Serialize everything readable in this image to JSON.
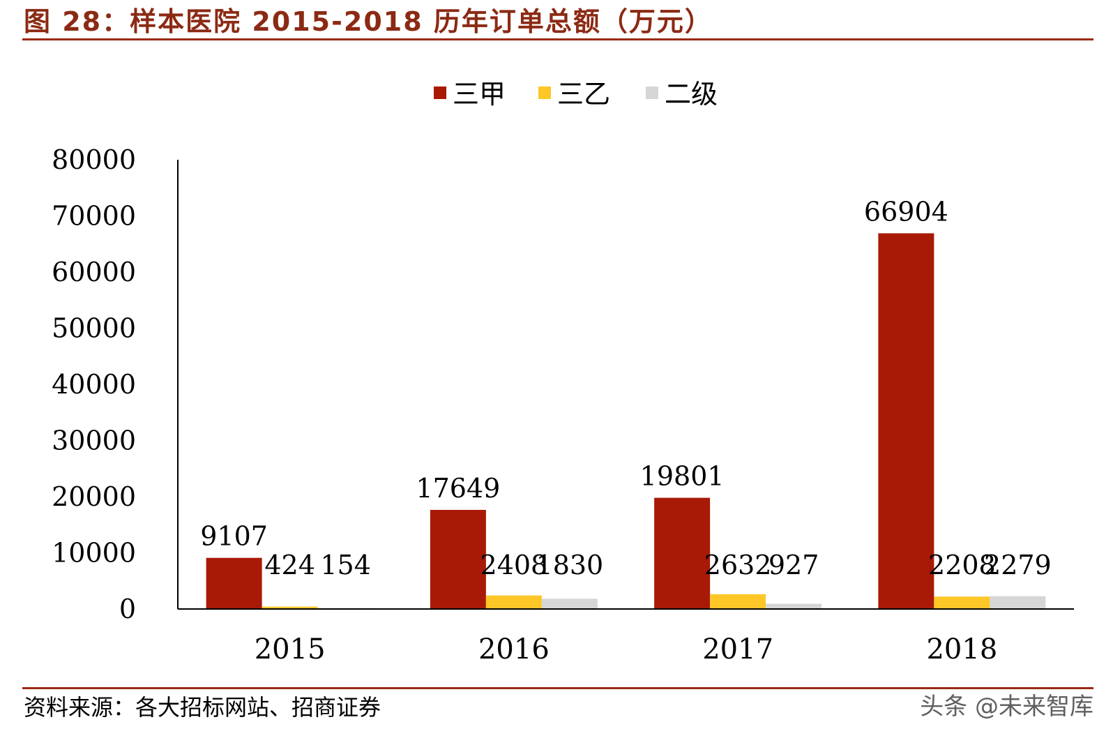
{
  "header": {
    "title": "图 28：样本医院 2015-2018 历年订单总额（万元）"
  },
  "footer": {
    "source": "资料来源：各大招标网站、招商证券",
    "watermark": "头条 @未来智库"
  },
  "colors": {
    "brand_rule": "#9b2a12",
    "title": "#8b2a14"
  },
  "chart_data": {
    "type": "bar",
    "categories": [
      "2015",
      "2016",
      "2017",
      "2018"
    ],
    "series": [
      {
        "name": "三甲",
        "color": "#a81a06",
        "values": [
          9107,
          17649,
          19801,
          66904
        ]
      },
      {
        "name": "三乙",
        "color": "#fdc728",
        "values": [
          424,
          2408,
          2632,
          2208
        ]
      },
      {
        "name": "二级",
        "color": "#d6d6d6",
        "values": [
          154,
          1830,
          927,
          2279
        ]
      }
    ],
    "yticks": [
      "0",
      "10000",
      "20000",
      "30000",
      "40000",
      "50000",
      "60000",
      "70000",
      "80000"
    ],
    "ylim": [
      0,
      80000
    ],
    "title": "",
    "xlabel": "",
    "ylabel": "",
    "legend": "top-center",
    "grid": false,
    "data_labels": true
  }
}
